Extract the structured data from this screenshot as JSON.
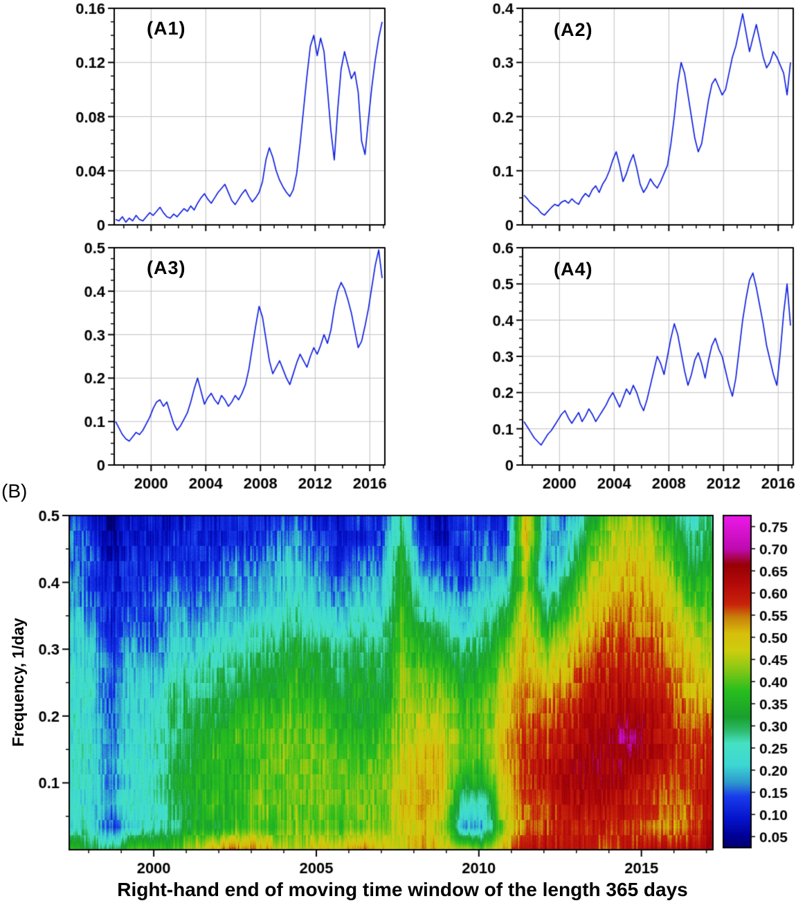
{
  "colors": {
    "background": "#ffffff",
    "line": "#1020e0",
    "grid": "#c0c0c0",
    "axis": "#000000",
    "text": "#000000"
  },
  "chart_data": [
    {
      "type": "line",
      "id": "A1",
      "label": "(A1)",
      "xlim": [
        1997.3,
        2017.1
      ],
      "ylim": [
        0,
        0.16
      ],
      "x_ticks": [
        2000,
        2004,
        2008,
        2012,
        2016
      ],
      "y_tick_values": [
        0,
        0.04,
        0.08,
        0.12,
        0.16
      ],
      "y_tick_labels": [
        "0",
        "0.04",
        "0.08",
        "0.12",
        "0.16"
      ],
      "x0": 1997.4,
      "dx": 0.25,
      "values": [
        0.004,
        0.003,
        0.006,
        0.002,
        0.005,
        0.003,
        0.007,
        0.004,
        0.003,
        0.006,
        0.009,
        0.007,
        0.01,
        0.013,
        0.009,
        0.006,
        0.005,
        0.008,
        0.006,
        0.009,
        0.012,
        0.01,
        0.014,
        0.011,
        0.016,
        0.02,
        0.023,
        0.019,
        0.016,
        0.02,
        0.024,
        0.027,
        0.03,
        0.024,
        0.018,
        0.015,
        0.019,
        0.023,
        0.026,
        0.021,
        0.017,
        0.02,
        0.024,
        0.032,
        0.048,
        0.057,
        0.05,
        0.04,
        0.033,
        0.028,
        0.024,
        0.021,
        0.026,
        0.038,
        0.06,
        0.085,
        0.11,
        0.132,
        0.14,
        0.125,
        0.138,
        0.128,
        0.1,
        0.07,
        0.048,
        0.085,
        0.115,
        0.128,
        0.118,
        0.108,
        0.113,
        0.098,
        0.062,
        0.052,
        0.078,
        0.102,
        0.122,
        0.138,
        0.15
      ]
    },
    {
      "type": "line",
      "id": "A2",
      "label": "(A2)",
      "xlim": [
        1997.3,
        2017.1
      ],
      "ylim": [
        0,
        0.4
      ],
      "x_ticks": [
        2000,
        2004,
        2008,
        2012,
        2016
      ],
      "y_tick_values": [
        0,
        0.1,
        0.2,
        0.3,
        0.4
      ],
      "y_tick_labels": [
        "0",
        "0.1",
        "0.2",
        "0.3",
        "0.4"
      ],
      "x0": 1997.4,
      "dx": 0.25,
      "values": [
        0.055,
        0.048,
        0.04,
        0.035,
        0.03,
        0.022,
        0.018,
        0.025,
        0.032,
        0.038,
        0.035,
        0.042,
        0.045,
        0.04,
        0.048,
        0.042,
        0.038,
        0.05,
        0.058,
        0.052,
        0.065,
        0.072,
        0.06,
        0.075,
        0.085,
        0.1,
        0.12,
        0.135,
        0.11,
        0.08,
        0.095,
        0.115,
        0.13,
        0.105,
        0.075,
        0.06,
        0.07,
        0.085,
        0.075,
        0.068,
        0.08,
        0.095,
        0.11,
        0.15,
        0.2,
        0.26,
        0.3,
        0.28,
        0.24,
        0.2,
        0.16,
        0.135,
        0.15,
        0.19,
        0.23,
        0.26,
        0.27,
        0.255,
        0.24,
        0.25,
        0.28,
        0.31,
        0.33,
        0.36,
        0.39,
        0.355,
        0.32,
        0.345,
        0.37,
        0.34,
        0.31,
        0.29,
        0.3,
        0.32,
        0.31,
        0.295,
        0.28,
        0.24,
        0.3
      ]
    },
    {
      "type": "line",
      "id": "A3",
      "label": "(A3)",
      "xlim": [
        1997.3,
        2017.1
      ],
      "ylim": [
        0,
        0.5
      ],
      "x_ticks": [
        2000,
        2004,
        2008,
        2012,
        2016
      ],
      "y_tick_values": [
        0,
        0.1,
        0.2,
        0.3,
        0.4,
        0.5
      ],
      "y_tick_labels": [
        "0",
        "0.1",
        "0.2",
        "0.3",
        "0.4",
        "0.5"
      ],
      "x0": 1997.4,
      "dx": 0.25,
      "values": [
        0.1,
        0.085,
        0.07,
        0.06,
        0.055,
        0.065,
        0.075,
        0.07,
        0.08,
        0.095,
        0.11,
        0.13,
        0.145,
        0.15,
        0.135,
        0.145,
        0.12,
        0.095,
        0.08,
        0.09,
        0.105,
        0.12,
        0.145,
        0.175,
        0.2,
        0.17,
        0.14,
        0.155,
        0.165,
        0.15,
        0.14,
        0.16,
        0.15,
        0.135,
        0.145,
        0.16,
        0.15,
        0.165,
        0.185,
        0.22,
        0.27,
        0.32,
        0.365,
        0.34,
        0.29,
        0.24,
        0.21,
        0.225,
        0.24,
        0.22,
        0.2,
        0.185,
        0.21,
        0.235,
        0.255,
        0.24,
        0.225,
        0.25,
        0.27,
        0.255,
        0.275,
        0.3,
        0.28,
        0.31,
        0.36,
        0.4,
        0.42,
        0.405,
        0.38,
        0.35,
        0.31,
        0.27,
        0.285,
        0.32,
        0.36,
        0.41,
        0.46,
        0.495,
        0.43
      ]
    },
    {
      "type": "line",
      "id": "A4",
      "label": "(A4)",
      "xlim": [
        1997.3,
        2017.1
      ],
      "ylim": [
        0,
        0.6
      ],
      "x_ticks": [
        2000,
        2004,
        2008,
        2012,
        2016
      ],
      "y_tick_values": [
        0,
        0.1,
        0.2,
        0.3,
        0.4,
        0.5,
        0.6
      ],
      "y_tick_labels": [
        "0",
        "0.1",
        "0.2",
        "0.3",
        "0.4",
        "0.5",
        "0.6"
      ],
      "x0": 1997.4,
      "dx": 0.25,
      "values": [
        0.12,
        0.105,
        0.09,
        0.075,
        0.065,
        0.055,
        0.07,
        0.085,
        0.095,
        0.11,
        0.125,
        0.14,
        0.15,
        0.13,
        0.115,
        0.13,
        0.145,
        0.12,
        0.135,
        0.155,
        0.14,
        0.12,
        0.135,
        0.15,
        0.165,
        0.185,
        0.2,
        0.18,
        0.16,
        0.185,
        0.21,
        0.195,
        0.22,
        0.2,
        0.17,
        0.15,
        0.18,
        0.22,
        0.26,
        0.3,
        0.28,
        0.25,
        0.3,
        0.35,
        0.39,
        0.36,
        0.31,
        0.26,
        0.22,
        0.25,
        0.29,
        0.31,
        0.28,
        0.24,
        0.29,
        0.33,
        0.35,
        0.32,
        0.3,
        0.26,
        0.22,
        0.19,
        0.24,
        0.32,
        0.4,
        0.46,
        0.51,
        0.53,
        0.49,
        0.44,
        0.39,
        0.33,
        0.29,
        0.25,
        0.22,
        0.31,
        0.42,
        0.5,
        0.385
      ]
    },
    {
      "type": "heatmap",
      "id": "B",
      "label": "(B)",
      "xlabel": "Right-hand end of moving time window of the length 365 days",
      "ylabel": "Frequency, 1/day",
      "xlim": [
        1997.4,
        2017.2
      ],
      "ylim": [
        0,
        0.5
      ],
      "x_ticks": [
        2000,
        2005,
        2010,
        2015
      ],
      "y_ticks": [
        0.1,
        0.2,
        0.3,
        0.4,
        0.5
      ],
      "colorbar_ticks": [
        "0.05",
        "0.10",
        "0.15",
        "0.20",
        "0.25",
        "0.30",
        "0.35",
        "0.40",
        "0.45",
        "0.50",
        "0.55",
        "0.60",
        "0.65",
        "0.70",
        "0.75"
      ],
      "grid_x_range": [
        1997.5,
        2017.0
      ],
      "grid_f_range": [
        0.5,
        0.02
      ],
      "grid": [
        [
          0.15,
          0.1,
          0.04,
          0.08,
          0.1,
          0.08,
          0.1,
          0.08,
          0.12,
          0.1,
          0.12,
          0.15,
          0.1,
          0.08,
          0.12,
          0.1,
          0.3,
          0.08,
          0.06,
          0.15,
          0.12,
          0.1,
          0.5,
          0.2,
          0.15,
          0.3,
          0.4,
          0.45,
          0.4,
          0.3,
          0.25,
          0.3
        ],
        [
          0.18,
          0.12,
          0.05,
          0.1,
          0.08,
          0.1,
          0.12,
          0.1,
          0.1,
          0.12,
          0.15,
          0.18,
          0.12,
          0.1,
          0.1,
          0.12,
          0.32,
          0.1,
          0.08,
          0.12,
          0.15,
          0.12,
          0.52,
          0.18,
          0.2,
          0.35,
          0.45,
          0.48,
          0.45,
          0.35,
          0.28,
          0.32
        ],
        [
          0.15,
          0.15,
          0.08,
          0.12,
          0.1,
          0.12,
          0.1,
          0.12,
          0.15,
          0.15,
          0.18,
          0.2,
          0.15,
          0.12,
          0.15,
          0.15,
          0.35,
          0.15,
          0.12,
          0.1,
          0.18,
          0.15,
          0.48,
          0.15,
          0.25,
          0.4,
          0.48,
          0.5,
          0.48,
          0.4,
          0.3,
          0.35
        ],
        [
          0.2,
          0.12,
          0.1,
          0.1,
          0.12,
          0.15,
          0.12,
          0.15,
          0.18,
          0.18,
          0.2,
          0.22,
          0.18,
          0.15,
          0.18,
          0.18,
          0.35,
          0.2,
          0.18,
          0.12,
          0.2,
          0.2,
          0.45,
          0.2,
          0.3,
          0.45,
          0.5,
          0.52,
          0.5,
          0.45,
          0.35,
          0.38
        ],
        [
          0.18,
          0.15,
          0.12,
          0.12,
          0.15,
          0.18,
          0.15,
          0.18,
          0.2,
          0.2,
          0.22,
          0.25,
          0.2,
          0.18,
          0.22,
          0.2,
          0.38,
          0.25,
          0.22,
          0.18,
          0.25,
          0.28,
          0.48,
          0.28,
          0.35,
          0.48,
          0.52,
          0.55,
          0.52,
          0.48,
          0.4,
          0.4
        ],
        [
          0.22,
          0.18,
          0.1,
          0.15,
          0.12,
          0.2,
          0.18,
          0.2,
          0.22,
          0.25,
          0.25,
          0.28,
          0.25,
          0.22,
          0.25,
          0.25,
          0.4,
          0.3,
          0.28,
          0.22,
          0.28,
          0.35,
          0.5,
          0.35,
          0.42,
          0.5,
          0.55,
          0.56,
          0.54,
          0.5,
          0.45,
          0.42
        ],
        [
          0.2,
          0.22,
          0.12,
          0.18,
          0.15,
          0.22,
          0.2,
          0.25,
          0.25,
          0.28,
          0.3,
          0.32,
          0.3,
          0.28,
          0.3,
          0.28,
          0.4,
          0.35,
          0.32,
          0.28,
          0.32,
          0.4,
          0.52,
          0.42,
          0.48,
          0.55,
          0.58,
          0.58,
          0.56,
          0.52,
          0.48,
          0.45
        ],
        [
          0.25,
          0.2,
          0.15,
          0.2,
          0.18,
          0.25,
          0.25,
          0.28,
          0.28,
          0.32,
          0.32,
          0.35,
          0.32,
          0.3,
          0.32,
          0.3,
          0.42,
          0.4,
          0.38,
          0.32,
          0.35,
          0.45,
          0.52,
          0.48,
          0.52,
          0.58,
          0.6,
          0.6,
          0.58,
          0.54,
          0.5,
          0.48
        ],
        [
          0.22,
          0.25,
          0.12,
          0.22,
          0.2,
          0.28,
          0.28,
          0.3,
          0.32,
          0.35,
          0.35,
          0.38,
          0.35,
          0.32,
          0.35,
          0.32,
          0.42,
          0.42,
          0.42,
          0.35,
          0.38,
          0.48,
          0.55,
          0.52,
          0.55,
          0.6,
          0.62,
          0.62,
          0.6,
          0.56,
          0.52,
          0.52
        ],
        [
          0.25,
          0.22,
          0.15,
          0.2,
          0.22,
          0.3,
          0.3,
          0.32,
          0.35,
          0.38,
          0.38,
          0.4,
          0.38,
          0.35,
          0.32,
          0.35,
          0.45,
          0.45,
          0.45,
          0.38,
          0.4,
          0.5,
          0.55,
          0.55,
          0.58,
          0.62,
          0.63,
          0.65,
          0.62,
          0.58,
          0.54,
          0.55
        ],
        [
          0.22,
          0.25,
          0.15,
          0.22,
          0.25,
          0.28,
          0.32,
          0.35,
          0.38,
          0.4,
          0.4,
          0.42,
          0.4,
          0.38,
          0.35,
          0.38,
          0.45,
          0.48,
          0.48,
          0.4,
          0.42,
          0.52,
          0.58,
          0.58,
          0.6,
          0.63,
          0.65,
          0.7,
          0.63,
          0.6,
          0.56,
          0.58
        ],
        [
          0.25,
          0.22,
          0.18,
          0.25,
          0.22,
          0.3,
          0.32,
          0.38,
          0.35,
          0.38,
          0.42,
          0.4,
          0.42,
          0.4,
          0.38,
          0.4,
          0.48,
          0.5,
          0.5,
          0.38,
          0.4,
          0.52,
          0.58,
          0.6,
          0.62,
          0.65,
          0.66,
          0.65,
          0.62,
          0.58,
          0.58,
          0.6
        ],
        [
          0.22,
          0.25,
          0.15,
          0.22,
          0.25,
          0.32,
          0.35,
          0.35,
          0.38,
          0.4,
          0.4,
          0.42,
          0.4,
          0.42,
          0.4,
          0.42,
          0.48,
          0.52,
          0.5,
          0.32,
          0.35,
          0.5,
          0.58,
          0.6,
          0.63,
          0.64,
          0.65,
          0.62,
          0.6,
          0.56,
          0.58,
          0.62
        ],
        [
          0.25,
          0.22,
          0.18,
          0.25,
          0.22,
          0.3,
          0.32,
          0.38,
          0.35,
          0.42,
          0.42,
          0.4,
          0.42,
          0.4,
          0.42,
          0.4,
          0.5,
          0.52,
          0.48,
          0.25,
          0.25,
          0.48,
          0.55,
          0.58,
          0.62,
          0.62,
          0.63,
          0.6,
          0.58,
          0.54,
          0.56,
          0.62
        ],
        [
          0.22,
          0.25,
          0.12,
          0.22,
          0.25,
          0.28,
          0.35,
          0.32,
          0.38,
          0.4,
          0.38,
          0.42,
          0.4,
          0.38,
          0.4,
          0.42,
          0.48,
          0.5,
          0.45,
          0.18,
          0.2,
          0.45,
          0.55,
          0.58,
          0.6,
          0.58,
          0.6,
          0.58,
          0.55,
          0.52,
          0.55,
          0.62
        ],
        [
          0.35,
          0.32,
          0.28,
          0.38,
          0.4,
          0.38,
          0.45,
          0.5,
          0.55,
          0.52,
          0.48,
          0.45,
          0.5,
          0.48,
          0.55,
          0.5,
          0.48,
          0.52,
          0.5,
          0.45,
          0.42,
          0.52,
          0.6,
          0.6,
          0.62,
          0.58,
          0.56,
          0.6,
          0.62,
          0.6,
          0.62,
          0.65
        ]
      ]
    }
  ]
}
